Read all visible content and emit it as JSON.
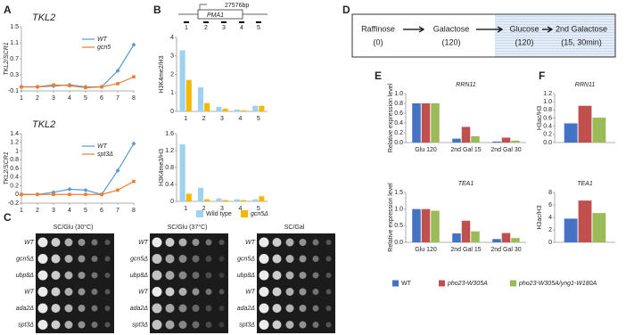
{
  "panel_labels": [
    "A",
    "B",
    "C",
    "D",
    "E",
    "F"
  ],
  "gene_map": {
    "length": "27576bp",
    "gene": "PMA1",
    "primers": [
      "1",
      "2",
      "3",
      "4",
      "5"
    ]
  },
  "spot_assay": {
    "plates": [
      {
        "title": "SC/Glu (30°C)",
        "rows": [
          "WT",
          "gcn5Δ",
          "ubp8Δ",
          "WT",
          "ada2Δ",
          "spt3Δ"
        ]
      },
      {
        "title": "SC/Glu (37°C)",
        "rows": [
          "WT",
          "gcn5Δ",
          "ubp8Δ",
          "WT",
          "ada2Δ",
          "spt3Δ"
        ]
      },
      {
        "title": "SC/Gal",
        "rows": [
          "WT",
          "gcn5Δ",
          "ubp8Δ",
          "WT",
          "ada2Δ",
          "spt3Δ"
        ]
      }
    ]
  },
  "scheme": {
    "steps": [
      {
        "label": "Raffinose",
        "time": "(0)"
      },
      {
        "label": "Galactose",
        "time": "(120)"
      },
      {
        "label": "Glucose",
        "time": "(120)"
      },
      {
        "label": "2nd Galactose",
        "time": "(15, 30min)"
      }
    ]
  },
  "chart_data": [
    {
      "type": "line",
      "title": "TKL2",
      "ylabel": "TKL2/SCR1",
      "x": [
        1,
        2,
        3,
        4,
        5,
        6,
        7,
        8
      ],
      "xlim": [
        1,
        8
      ],
      "xticks": [
        1,
        2,
        3,
        4,
        5,
        6,
        7,
        8
      ],
      "ylim": [
        -0.1,
        1.5
      ],
      "yticks": [
        -0.1,
        0.3,
        0.7,
        1.1,
        1.5
      ],
      "legend": "upper right",
      "series": [
        {
          "name": "WT",
          "color": "#5b9bd5",
          "marker": "diamond",
          "values": [
            0,
            0,
            0.02,
            0.05,
            0,
            0,
            0.4,
            1.05
          ]
        },
        {
          "name": "gcn5",
          "color": "#ed7d31",
          "marker": "square",
          "values": [
            0,
            0,
            0.05,
            0.03,
            -0.02,
            0,
            0.08,
            0.25
          ]
        }
      ]
    },
    {
      "type": "line",
      "title": "TKL2",
      "ylabel": "TKL2/SCR1",
      "x": [
        1,
        2,
        3,
        4,
        5,
        6,
        7,
        8
      ],
      "xlim": [
        1,
        8
      ],
      "xticks": [
        1,
        2,
        3,
        4,
        5,
        6,
        7,
        8
      ],
      "ylim": [
        -0.2,
        1.4
      ],
      "yticks": [
        -0.2,
        0,
        0.2,
        0.4,
        0.6,
        0.8,
        1,
        1.2,
        1.4
      ],
      "legend": "upper right",
      "series": [
        {
          "name": "WT",
          "color": "#5b9bd5",
          "marker": "diamond",
          "values": [
            0,
            0,
            0.05,
            0.12,
            0.1,
            0,
            0.55,
            1.17
          ]
        },
        {
          "name": "spt3Δ",
          "color": "#ed7d31",
          "marker": "square",
          "values": [
            0,
            0,
            0,
            0,
            0,
            0,
            0.1,
            0.3
          ]
        }
      ]
    },
    {
      "type": "bar",
      "ylabel": "H3K4me2/H3",
      "categories": [
        "1",
        "2",
        "3",
        "4",
        "5"
      ],
      "ylim": [
        0,
        4
      ],
      "yticks": [
        0,
        1,
        2,
        3,
        4
      ],
      "series": [
        {
          "name": "Wild type",
          "color": "#9dd3f0",
          "values": [
            3.3,
            1.3,
            0.25,
            0.1,
            0.3
          ]
        },
        {
          "name": "gcn5Δ",
          "color": "#f5b800",
          "values": [
            1.7,
            0.45,
            0.15,
            0.05,
            0.3
          ]
        }
      ]
    },
    {
      "type": "bar",
      "ylabel": "H3K4me3/H3",
      "categories": [
        "1",
        "2",
        "3",
        "4",
        "5"
      ],
      "ylim": [
        0,
        1.6
      ],
      "yticks": [
        0,
        0.4,
        0.8,
        1.2,
        1.6
      ],
      "legend": "below",
      "series": [
        {
          "name": "Wild type",
          "color": "#9dd3f0",
          "values": [
            1.35,
            0.32,
            0.07,
            0.05,
            0.05
          ]
        },
        {
          "name": "gcn5Δ",
          "color": "#f5b800",
          "values": [
            0.18,
            0.05,
            0.03,
            0.03,
            0.12
          ]
        }
      ]
    },
    {
      "type": "bar",
      "title": "RRN11",
      "ylabel": "Relative expression level",
      "categories": [
        "Glu 120",
        "2nd Gal 15",
        "2nd Gal 30"
      ],
      "ylim": [
        0,
        1
      ],
      "yticks": [
        {
          "value": 0,
          "label": "0.0"
        },
        0.2,
        0.4,
        0.6,
        0.8,
        {
          "value": 1,
          "label": "1.0"
        }
      ],
      "series": [
        {
          "name": "WT",
          "color": "#4472c4",
          "values": [
            0.8,
            0.08,
            0.02
          ]
        },
        {
          "name": "pho23-W305A",
          "color": "#c0504d",
          "values": [
            0.8,
            0.32,
            0.1
          ]
        },
        {
          "name": "pho23-W305A/yng1-W180A",
          "color": "#9bbb59",
          "values": [
            0.8,
            0.13,
            0.04
          ]
        }
      ]
    },
    {
      "type": "bar",
      "title": "TEA1",
      "ylabel": "Relative expression level",
      "categories": [
        "Glu 120",
        "2nd Gal 15",
        "2nd Gal 30"
      ],
      "ylim": [
        0,
        1.5
      ],
      "yticks": [
        {
          "value": 0,
          "label": "0.0"
        },
        0.5,
        {
          "value": 1,
          "label": "1.0"
        },
        1.5
      ],
      "series": [
        {
          "name": "WT",
          "color": "#4472c4",
          "values": [
            1,
            0.27,
            0.1
          ]
        },
        {
          "name": "pho23-W305A",
          "color": "#c0504d",
          "values": [
            1,
            0.65,
            0.28
          ]
        },
        {
          "name": "pho23-W305A/yng1-W180A",
          "color": "#9bbb59",
          "values": [
            0.95,
            0.33,
            0.13
          ]
        }
      ]
    },
    {
      "type": "bar",
      "title": "RRN11",
      "ylabel": "H3ac/H3",
      "categories": [
        null
      ],
      "ylim": [
        0,
        1.2
      ],
      "yticks": [
        {
          "value": 0,
          "label": "0.0"
        },
        0.2,
        0.4,
        0.6,
        0.8,
        {
          "value": 1,
          "label": "1.0"
        },
        1.2
      ],
      "series": [
        {
          "name": "WT",
          "color": "#4472c4",
          "values": [
            0.47
          ]
        },
        {
          "name": "pho23-W305A",
          "color": "#c0504d",
          "values": [
            0.9
          ]
        },
        {
          "name": "pho23-W305A/yng1-W180A",
          "color": "#9bbb59",
          "values": [
            0.61
          ]
        }
      ]
    },
    {
      "type": "bar",
      "title": "TEA1",
      "ylabel": "H3ac/H3",
      "categories": [
        null
      ],
      "ylim": [
        0,
        8
      ],
      "yticks": [
        0,
        2,
        4,
        6,
        8
      ],
      "legend": "below",
      "series": [
        {
          "name": "WT",
          "color": "#4472c4",
          "values": [
            3.8
          ]
        },
        {
          "name": "pho23-W305A",
          "color": "#c0504d",
          "values": [
            6.7
          ]
        },
        {
          "name": "pho23-W305A/yng1-W180A",
          "color": "#9bbb59",
          "values": [
            4.7
          ]
        }
      ]
    }
  ]
}
